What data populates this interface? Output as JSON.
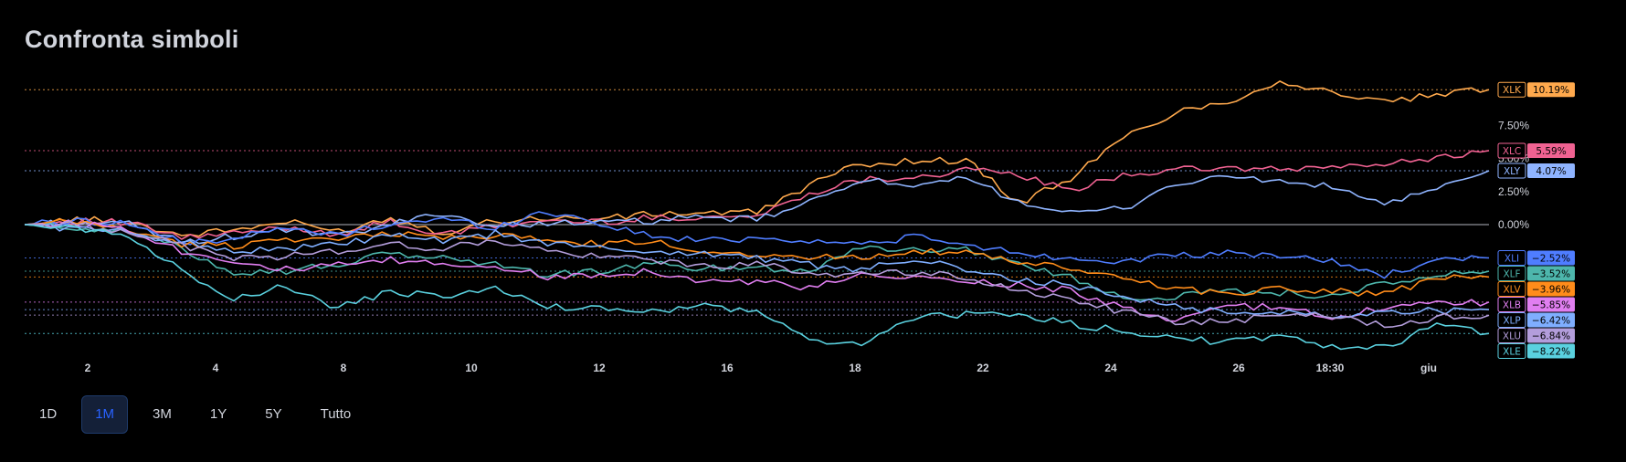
{
  "page": {
    "title": "Confronta simboli"
  },
  "ranges": [
    {
      "label": "1D",
      "active": false
    },
    {
      "label": "1M",
      "active": true
    },
    {
      "label": "3M",
      "active": false
    },
    {
      "label": "1Y",
      "active": false
    },
    {
      "label": "5Y",
      "active": false
    },
    {
      "label": "Tutto",
      "active": false
    }
  ],
  "chart_data": {
    "type": "line",
    "title": "",
    "xlabel": "",
    "ylabel": "",
    "x_ticks": [
      "2",
      "4",
      "8",
      "10",
      "12",
      "16",
      "18",
      "22",
      "24",
      "26",
      "18:30",
      "giu"
    ],
    "y_ticks": [
      "0.00%",
      "2.50%",
      "5.00%",
      "7.50%"
    ],
    "ylim": [
      -9.5,
      11
    ],
    "grid": false,
    "zero_line": true,
    "series": [
      {
        "name": "XLK",
        "color": "#ffa94d",
        "last_label": "10.19%",
        "values": [
          0,
          0.4,
          0.2,
          -0.8,
          -0.4,
          0.2,
          -0.5,
          0.5,
          -0.6,
          0.3,
          0.5,
          0.4,
          0.8,
          0.9,
          0.9,
          3.0,
          4.6,
          4.8,
          4.9,
          1.6,
          3.5,
          6.5,
          8.5,
          9.3,
          10.8,
          10.0,
          9.2,
          9.8,
          10.19
        ]
      },
      {
        "name": "XLC",
        "color": "#f06292",
        "last_label": "5.59%",
        "values": [
          0,
          0.3,
          0.1,
          -1.0,
          -0.7,
          -0.2,
          -0.7,
          0.2,
          -0.8,
          -0.1,
          0.3,
          0.2,
          0.5,
          0.6,
          0.6,
          2.4,
          3.4,
          3.6,
          4.1,
          3.8,
          2.5,
          3.8,
          4.1,
          4.3,
          4.1,
          4.4,
          4.5,
          5.1,
          5.59
        ]
      },
      {
        "name": "XLY",
        "color": "#8fb4ff",
        "last_label": "4.07%",
        "values": [
          0,
          0.2,
          0.0,
          -1.3,
          -0.9,
          -0.4,
          -0.9,
          0.0,
          0.9,
          -0.2,
          0.2,
          0.1,
          0.3,
          0.5,
          0.4,
          1.6,
          3.5,
          2.7,
          3.5,
          1.8,
          0.8,
          1.2,
          3.1,
          3.6,
          3.3,
          2.8,
          1.6,
          2.6,
          4.07
        ]
      },
      {
        "name": "XLI",
        "color": "#4f7dff",
        "last_label": "−2.52%",
        "values": [
          0,
          0.3,
          0.1,
          -1.4,
          -1.0,
          -0.3,
          -0.8,
          0.1,
          0.4,
          -0.2,
          1.0,
          0.1,
          -0.9,
          -1.2,
          -1.0,
          -1.2,
          -1.5,
          -0.9,
          -1.6,
          -2.1,
          -2.6,
          -2.7,
          -2.4,
          -2.2,
          -2.3,
          -2.8,
          -3.8,
          -2.8,
          -2.52
        ]
      },
      {
        "name": "XLF",
        "color": "#4db6ac",
        "last_label": "−3.52%",
        "values": [
          0,
          -0.2,
          -0.5,
          -1.8,
          -3.6,
          -3.5,
          -3.0,
          -2.2,
          -2.5,
          -3.0,
          -3.8,
          -3.5,
          -3.0,
          -3.3,
          -3.2,
          -3.5,
          -1.6,
          -2.0,
          -1.8,
          -3.0,
          -4.0,
          -5.5,
          -5.4,
          -5.0,
          -5.1,
          -5.4,
          -4.5,
          -3.8,
          -3.52
        ]
      },
      {
        "name": "XLV",
        "color": "#ff8c1a",
        "last_label": "−3.96%",
        "values": [
          0,
          0.2,
          -0.4,
          -1.5,
          -1.6,
          -1.0,
          -1.2,
          -0.6,
          -1.0,
          -0.8,
          -1.2,
          -1.5,
          -1.3,
          -2.0,
          -2.2,
          -2.5,
          -2.4,
          -2.0,
          -2.2,
          -2.8,
          -3.4,
          -4.0,
          -4.8,
          -5.2,
          -4.8,
          -5.0,
          -5.3,
          -4.0,
          -3.96
        ]
      },
      {
        "name": "XLB",
        "color": "#e07ef0",
        "last_label": "−5.85%",
        "values": [
          0,
          0.1,
          -0.3,
          -2.0,
          -2.7,
          -3.4,
          -3.1,
          -2.7,
          -3.0,
          -3.1,
          -4.0,
          -3.7,
          -3.5,
          -4.3,
          -4.3,
          -4.8,
          -3.9,
          -4.0,
          -4.3,
          -4.5,
          -5.0,
          -6.3,
          -7.4,
          -6.1,
          -6.3,
          -7.0,
          -6.2,
          -6.0,
          -5.85
        ]
      },
      {
        "name": "XLP",
        "color": "#7faeff",
        "last_label": "−6.42%",
        "values": [
          0,
          -0.3,
          -0.6,
          -1.3,
          -2.0,
          -1.8,
          -1.5,
          -0.8,
          -1.3,
          -0.7,
          -1.4,
          -1.8,
          -2.0,
          -2.2,
          -2.5,
          -3.0,
          -3.5,
          -2.5,
          -3.5,
          -4.2,
          -4.6,
          -5.5,
          -6.1,
          -6.7,
          -6.6,
          -6.8,
          -6.6,
          -6.5,
          -6.42
        ]
      },
      {
        "name": "XLU",
        "color": "#b39ddb",
        "last_label": "−6.84%",
        "values": [
          0,
          0.0,
          -0.5,
          -1.6,
          -2.5,
          -2.4,
          -2.0,
          -1.5,
          -1.8,
          -1.2,
          -2.0,
          -2.5,
          -2.6,
          -3.2,
          -3.0,
          -3.6,
          -3.8,
          -3.6,
          -4.0,
          -5.0,
          -5.6,
          -6.6,
          -7.4,
          -7.2,
          -7.0,
          -6.8,
          -7.6,
          -7.0,
          -6.84
        ]
      },
      {
        "name": "XLE",
        "color": "#5ad1df",
        "last_label": "−8.22%",
        "values": [
          0,
          -0.3,
          -0.8,
          -3.5,
          -5.5,
          -4.7,
          -6.3,
          -5.1,
          -5.4,
          -4.9,
          -6.2,
          -6.3,
          -6.6,
          -6.2,
          -6.5,
          -8.8,
          -9.0,
          -7.0,
          -6.8,
          -6.8,
          -7.5,
          -8.0,
          -8.6,
          -8.9,
          -8.5,
          -9.3,
          -9.3,
          -7.5,
          -8.22
        ]
      }
    ]
  }
}
